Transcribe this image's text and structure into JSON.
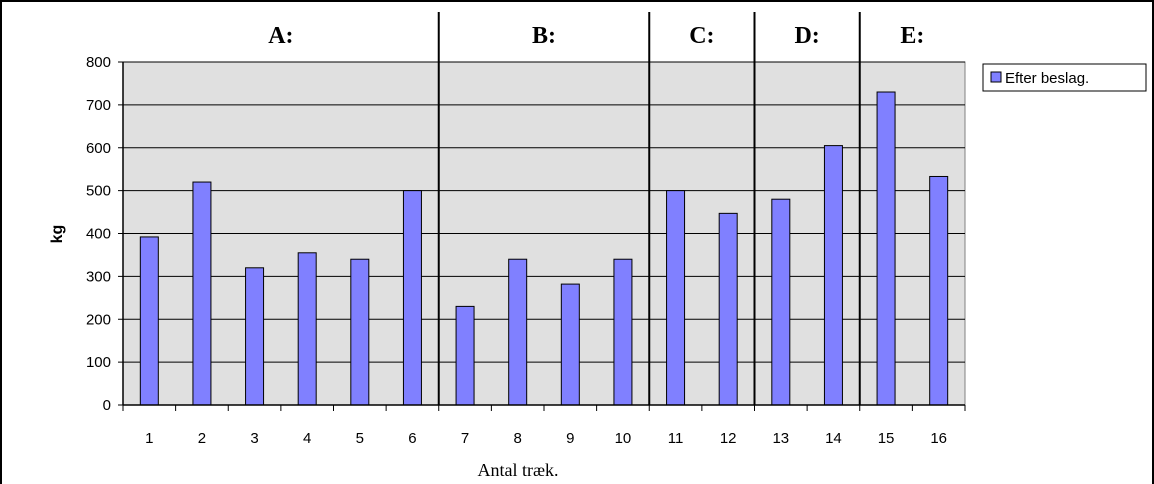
{
  "chart_data": {
    "type": "bar",
    "categories": [
      "1",
      "2",
      "3",
      "4",
      "5",
      "6",
      "7",
      "8",
      "9",
      "10",
      "11",
      "12",
      "13",
      "14",
      "15",
      "16"
    ],
    "series": [
      {
        "name": "Efter beslag.",
        "values": [
          392,
          520,
          320,
          355,
          340,
          500,
          230,
          340,
          282,
          340,
          500,
          447,
          480,
          605,
          730,
          533
        ],
        "color": "#8080ff"
      }
    ],
    "title": "",
    "xlabel": "Antal træk.",
    "ylabel": "kg",
    "ylim": [
      0,
      800
    ],
    "yticks": [
      0,
      100,
      200,
      300,
      400,
      500,
      600,
      700,
      800
    ],
    "grid": true,
    "legend_position": "right",
    "plot_background": "#e0e0e0",
    "sections": [
      {
        "label": "A:",
        "start_category": "1",
        "end_category": "6"
      },
      {
        "label": "B:",
        "start_category": "7",
        "end_category": "10"
      },
      {
        "label": "C:",
        "start_category": "11",
        "end_category": "12"
      },
      {
        "label": "D:",
        "start_category": "13",
        "end_category": "14"
      },
      {
        "label": "E:",
        "start_category": "15",
        "end_category": "16"
      }
    ]
  }
}
